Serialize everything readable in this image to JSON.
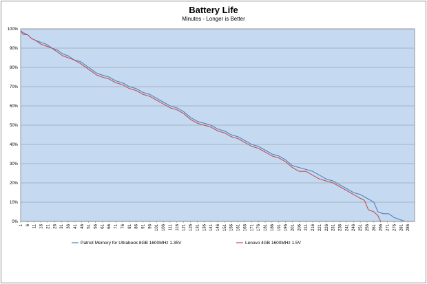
{
  "chart_data": {
    "type": "line",
    "title": "Battery Life",
    "subtitle": "Minutes - Longer is Better",
    "xlabel": "",
    "ylabel": "",
    "ylim": [
      0,
      100
    ],
    "y_ticks": [
      "0%",
      "10%",
      "20%",
      "30%",
      "40%",
      "50%",
      "60%",
      "70%",
      "80%",
      "90%",
      "100%"
    ],
    "x_ticks": [
      "1",
      "6",
      "11",
      "16",
      "21",
      "26",
      "31",
      "36",
      "41",
      "46",
      "51",
      "56",
      "61",
      "66",
      "71",
      "76",
      "81",
      "86",
      "91",
      "96",
      "101",
      "106",
      "111",
      "116",
      "121",
      "126",
      "131",
      "136",
      "141",
      "146",
      "151",
      "156",
      "161",
      "166",
      "171",
      "176",
      "181",
      "186",
      "191",
      "196",
      "201",
      "206",
      "211",
      "216",
      "221",
      "226",
      "231",
      "236",
      "241",
      "246",
      "251",
      "256",
      "261",
      "266",
      "271",
      "276",
      "281",
      "286"
    ],
    "xlim": [
      1,
      291
    ],
    "grid": true,
    "legend_position": "bottom",
    "plot_background": "#c5d9f1",
    "series": [
      {
        "name": "Patriot Memory for Ultrabook 8GB 1600MHz 1.35V",
        "color": "#4f81bd",
        "points": [
          [
            1,
            99
          ],
          [
            3,
            98
          ],
          [
            6,
            97
          ],
          [
            9,
            95
          ],
          [
            12,
            94
          ],
          [
            16,
            93
          ],
          [
            20,
            92
          ],
          [
            24,
            90
          ],
          [
            28,
            89
          ],
          [
            32,
            87
          ],
          [
            36,
            86
          ],
          [
            40,
            84
          ],
          [
            45,
            83
          ],
          [
            49,
            81
          ],
          [
            53,
            79
          ],
          [
            57,
            77
          ],
          [
            61,
            76
          ],
          [
            66,
            75
          ],
          [
            71,
            73
          ],
          [
            76,
            72
          ],
          [
            81,
            70
          ],
          [
            86,
            69
          ],
          [
            91,
            67
          ],
          [
            96,
            66
          ],
          [
            101,
            64
          ],
          [
            106,
            62
          ],
          [
            111,
            60
          ],
          [
            116,
            59
          ],
          [
            121,
            57
          ],
          [
            126,
            54
          ],
          [
            131,
            52
          ],
          [
            136,
            51
          ],
          [
            141,
            50
          ],
          [
            146,
            48
          ],
          [
            151,
            47
          ],
          [
            156,
            45
          ],
          [
            161,
            44
          ],
          [
            166,
            42
          ],
          [
            171,
            40
          ],
          [
            176,
            39
          ],
          [
            181,
            37
          ],
          [
            186,
            35
          ],
          [
            191,
            34
          ],
          [
            196,
            32
          ],
          [
            201,
            29
          ],
          [
            206,
            28
          ],
          [
            211,
            27
          ],
          [
            216,
            26
          ],
          [
            221,
            24
          ],
          [
            226,
            22
          ],
          [
            231,
            21
          ],
          [
            236,
            19
          ],
          [
            241,
            17
          ],
          [
            246,
            15
          ],
          [
            251,
            14
          ],
          [
            256,
            12
          ],
          [
            261,
            10
          ],
          [
            264,
            5
          ],
          [
            268,
            4
          ],
          [
            272,
            4
          ],
          [
            276,
            2
          ],
          [
            280,
            1
          ],
          [
            284,
            0
          ]
        ]
      },
      {
        "name": "Lenovo 4GB 1600MHz 1.5V",
        "color": "#c0504d",
        "points": [
          [
            1,
            99
          ],
          [
            3,
            97
          ],
          [
            6,
            97
          ],
          [
            9,
            95
          ],
          [
            12,
            94
          ],
          [
            16,
            92
          ],
          [
            20,
            91
          ],
          [
            24,
            90
          ],
          [
            28,
            88
          ],
          [
            32,
            86
          ],
          [
            36,
            85
          ],
          [
            40,
            84
          ],
          [
            45,
            82
          ],
          [
            49,
            80
          ],
          [
            53,
            78
          ],
          [
            57,
            76
          ],
          [
            61,
            75
          ],
          [
            66,
            74
          ],
          [
            71,
            72
          ],
          [
            76,
            71
          ],
          [
            81,
            69
          ],
          [
            86,
            68
          ],
          [
            91,
            66
          ],
          [
            96,
            65
          ],
          [
            101,
            63
          ],
          [
            106,
            61
          ],
          [
            111,
            59
          ],
          [
            116,
            58
          ],
          [
            121,
            56
          ],
          [
            126,
            53
          ],
          [
            131,
            51
          ],
          [
            136,
            50
          ],
          [
            141,
            49
          ],
          [
            146,
            47
          ],
          [
            151,
            46
          ],
          [
            156,
            44
          ],
          [
            161,
            43
          ],
          [
            166,
            41
          ],
          [
            171,
            39
          ],
          [
            176,
            38
          ],
          [
            181,
            36
          ],
          [
            186,
            34
          ],
          [
            191,
            33
          ],
          [
            196,
            31
          ],
          [
            201,
            28
          ],
          [
            206,
            26
          ],
          [
            211,
            26
          ],
          [
            216,
            24
          ],
          [
            221,
            22
          ],
          [
            226,
            21
          ],
          [
            231,
            20
          ],
          [
            236,
            18
          ],
          [
            241,
            16
          ],
          [
            246,
            14
          ],
          [
            251,
            12
          ],
          [
            254,
            11
          ],
          [
            257,
            6
          ],
          [
            261,
            5
          ],
          [
            264,
            3
          ],
          [
            266,
            0
          ]
        ]
      }
    ]
  }
}
